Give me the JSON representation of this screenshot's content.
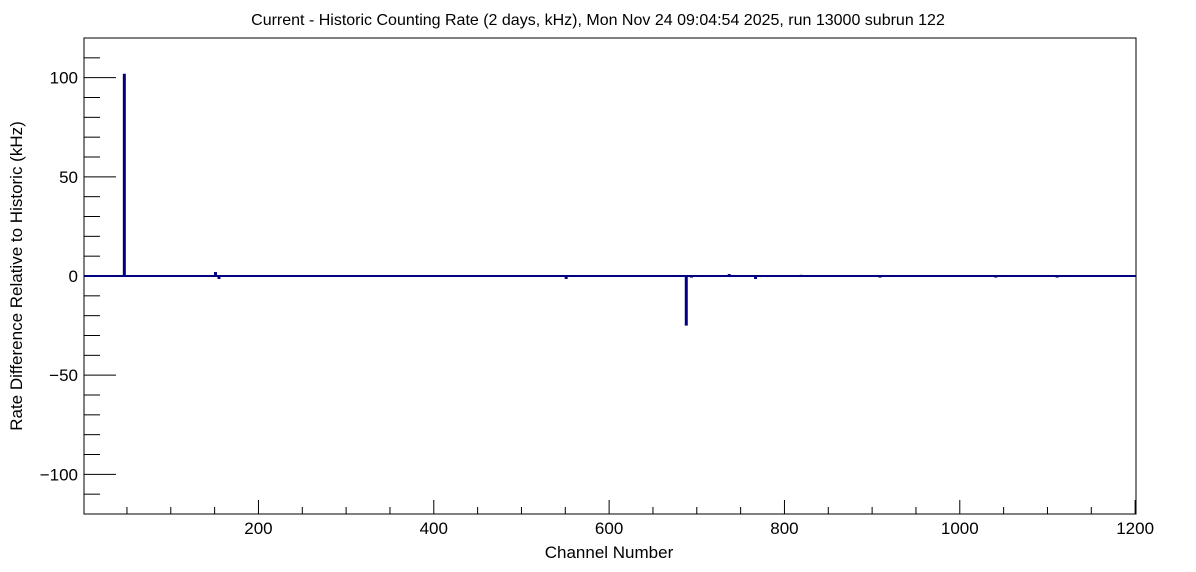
{
  "chart_data": {
    "type": "bar",
    "title": "Current - Historic Counting Rate (2 days, kHz), Mon Nov 24 09:04:54 2025, run 13000 subrun 122",
    "xlabel": "Channel Number",
    "ylabel": "Rate Difference Relative to Historic (kHz)",
    "xlim": [
      1,
      1201
    ],
    "ylim": [
      -120,
      120
    ],
    "x_major_ticks": [
      200,
      400,
      600,
      800,
      1000,
      1200
    ],
    "x_tick_labels": [
      "200",
      "400",
      "600",
      "800",
      "1000",
      "1200"
    ],
    "y_major_ticks": [
      -100,
      -50,
      0,
      50,
      100
    ],
    "y_tick_labels": [
      "−100",
      "−50",
      "0",
      "50",
      "100"
    ],
    "grid": false,
    "line_color": "#000080",
    "points": [
      {
        "x": 47,
        "y": 102
      },
      {
        "x": 151,
        "y": 2
      },
      {
        "x": 155,
        "y": -1.5
      },
      {
        "x": 551,
        "y": -1.5
      },
      {
        "x": 688,
        "y": -25
      },
      {
        "x": 694,
        "y": -0.8
      },
      {
        "x": 737,
        "y": 1
      },
      {
        "x": 767,
        "y": -1.5
      },
      {
        "x": 819,
        "y": 0.6
      },
      {
        "x": 909,
        "y": -0.8
      },
      {
        "x": 1041,
        "y": -0.8
      },
      {
        "x": 1111,
        "y": -0.8
      }
    ]
  }
}
